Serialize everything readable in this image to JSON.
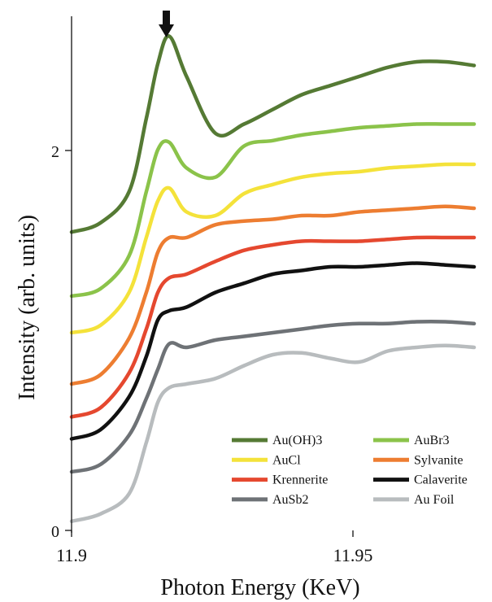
{
  "chart_data": {
    "type": "line",
    "xlabel": "Photon Energy (KeV)",
    "ylabel": "Intensity (arb. units)",
    "xlim": [
      11.9,
      11.97
    ],
    "ylim": [
      0,
      2.8
    ],
    "xticks": [
      {
        "value": 11.9,
        "label": "11.9"
      },
      {
        "value": 11.95,
        "label": "11.95"
      }
    ],
    "yticks": [
      {
        "value": 0,
        "label": "0"
      },
      {
        "value": 2,
        "label": "2"
      }
    ],
    "grid": false,
    "legend_position": "bottom-right",
    "edge_marker": {
      "x": 11.917,
      "symbol": "downward arrow"
    },
    "x": [
      11.9,
      11.905,
      11.91,
      11.913,
      11.915,
      11.917,
      11.92,
      11.925,
      11.93,
      11.935,
      11.94,
      11.945,
      11.95,
      11.955,
      11.96,
      11.965,
      11.97
    ],
    "series": [
      {
        "name": "Au(OH)3",
        "color": "#557a34",
        "values": [
          1.63,
          1.68,
          1.85,
          2.25,
          2.55,
          2.7,
          2.48,
          2.17,
          2.22,
          2.3,
          2.38,
          2.43,
          2.48,
          2.53,
          2.56,
          2.56,
          2.54
        ]
      },
      {
        "name": "AuBr3",
        "color": "#8bc34a",
        "values": [
          1.28,
          1.32,
          1.5,
          1.85,
          2.08,
          2.12,
          1.98,
          1.93,
          2.1,
          2.13,
          2.16,
          2.18,
          2.2,
          2.21,
          2.22,
          2.22,
          2.22
        ]
      },
      {
        "name": "AuCl",
        "color": "#f4e23a",
        "values": [
          1.08,
          1.12,
          1.3,
          1.6,
          1.8,
          1.87,
          1.74,
          1.72,
          1.84,
          1.89,
          1.93,
          1.95,
          1.96,
          1.98,
          1.99,
          2.0,
          2.0
        ]
      },
      {
        "name": "Sylvanite",
        "color": "#ed7d31",
        "values": [
          0.8,
          0.85,
          1.05,
          1.3,
          1.52,
          1.6,
          1.6,
          1.67,
          1.69,
          1.7,
          1.72,
          1.72,
          1.74,
          1.75,
          1.76,
          1.77,
          1.76
        ]
      },
      {
        "name": "Krennerite",
        "color": "#e5482f",
        "values": [
          0.62,
          0.67,
          0.86,
          1.1,
          1.3,
          1.38,
          1.4,
          1.47,
          1.53,
          1.56,
          1.58,
          1.58,
          1.58,
          1.59,
          1.6,
          1.6,
          1.6
        ]
      },
      {
        "name": "Calaverite",
        "color": "#111111",
        "values": [
          0.5,
          0.55,
          0.73,
          0.95,
          1.15,
          1.2,
          1.22,
          1.3,
          1.35,
          1.4,
          1.42,
          1.44,
          1.44,
          1.45,
          1.46,
          1.45,
          1.44
        ]
      },
      {
        "name": "AuSb2",
        "color": "#6e7276",
        "values": [
          0.32,
          0.36,
          0.52,
          0.72,
          0.88,
          1.02,
          1.0,
          1.04,
          1.06,
          1.08,
          1.1,
          1.12,
          1.13,
          1.13,
          1.14,
          1.14,
          1.13
        ]
      },
      {
        "name": "Au Foil",
        "color": "#b8bcbe",
        "values": [
          0.05,
          0.09,
          0.2,
          0.48,
          0.7,
          0.78,
          0.8,
          0.83,
          0.9,
          0.96,
          0.97,
          0.94,
          0.92,
          0.98,
          1.0,
          1.01,
          1.0
        ]
      }
    ]
  }
}
